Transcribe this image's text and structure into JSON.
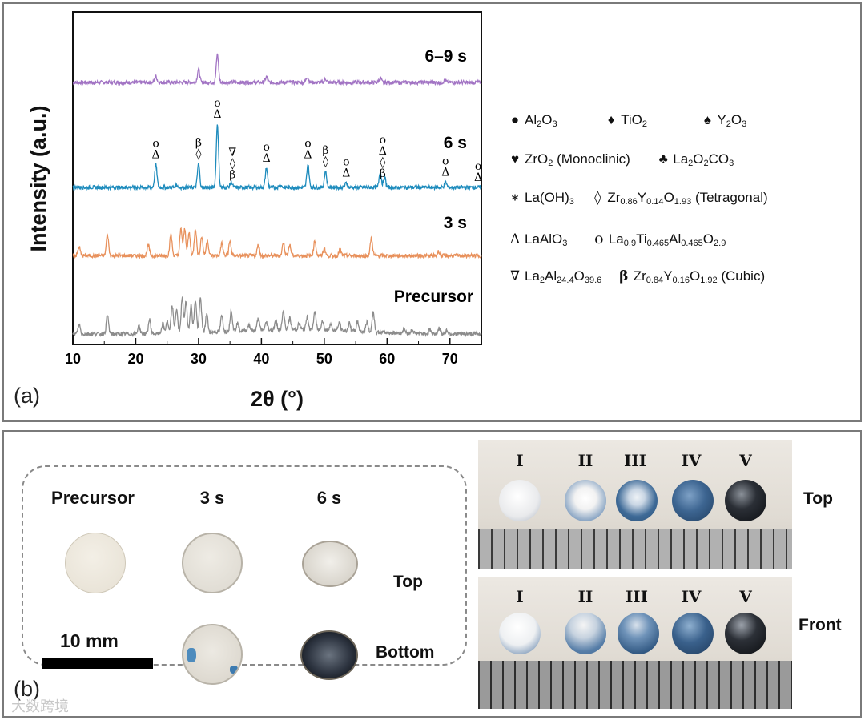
{
  "panel_a": {
    "label": "(a)"
  },
  "panel_b": {
    "label": "(b)",
    "columns": [
      "Precursor",
      "3 s",
      "6 s"
    ],
    "rows": [
      "Top",
      "Bottom"
    ],
    "scale_bar": "10 mm",
    "sphere_labels": [
      "I",
      "II",
      "III",
      "IV",
      "V"
    ],
    "views": [
      "Top",
      "Front"
    ]
  },
  "legend": {
    "al2o3": {
      "sym": "●",
      "pre": "Al",
      "s1": "2",
      "mid": "O",
      "s2": "3"
    },
    "tio2": {
      "sym": "♦",
      "pre": "TiO",
      "s1": "2"
    },
    "y2o3": {
      "sym": "♠",
      "pre": "Y",
      "s1": "2",
      "mid": "O",
      "s2": "3"
    },
    "zro2": {
      "sym": "♥",
      "pre": "ZrO",
      "s1": "2",
      "post": " (Monoclinic)"
    },
    "la2o2co3": {
      "sym": "♣",
      "pre": "La",
      "s1": "2",
      "mid": "O",
      "s2": "2",
      "post": "CO",
      "s3": "3"
    },
    "laoh3": {
      "sym": "∗",
      "text": "La(OH)",
      "s1": "3"
    },
    "tetragonal": {
      "sym": "◊",
      "a": "Zr",
      "s1": "0.86",
      "b": "Y",
      "s2": "0.14",
      "c": "O",
      "s3": "1.93",
      "post": " (Tetragonal)"
    },
    "laalo3": {
      "sym": "Δ",
      "text": "LaAlO",
      "s1": "3"
    },
    "latial": {
      "sym": "o",
      "a": "La",
      "s1": "0.9",
      "b": "Ti",
      "s2": "0.465",
      "c": "Al",
      "s3": "0.465",
      "d": "O",
      "s4": "2.9"
    },
    "la2al": {
      "sym": "∇",
      "a": "La",
      "s1": "2",
      "b": "Al",
      "s2": "24.4",
      "c": "O",
      "s3": "39.6"
    },
    "cubic": {
      "sym": "β",
      "a": "Zr",
      "s1": "0.84",
      "b": "Y",
      "s2": "0.16",
      "c": "O",
      "s3": "1.92",
      "post": " (Cubic)"
    }
  },
  "watermark": "大数跨境",
  "colors": {
    "s69": "#a274c4",
    "s6": "#1f8cbd",
    "s3": "#e8915c",
    "precursor": "#8c8c8c"
  },
  "chart_data": {
    "type": "line",
    "xlabel": "2θ (°)",
    "ylabel": "Intensity (a.u.)",
    "xlim": [
      10,
      75
    ],
    "xticks": [
      10,
      20,
      30,
      40,
      50,
      60,
      70
    ],
    "series": [
      {
        "name": "6–9 s",
        "color": "#a274c4",
        "peaks": [
          [
            23.2,
            0.35
          ],
          [
            30.0,
            0.75
          ],
          [
            33.0,
            1.6
          ],
          [
            40.8,
            0.3
          ],
          [
            47.3,
            0.33
          ],
          [
            50.2,
            0.2
          ],
          [
            58.9,
            0.25
          ],
          [
            69.2,
            0.14
          ]
        ]
      },
      {
        "name": "6 s",
        "color": "#1f8cbd",
        "peaks": [
          [
            23.2,
            1.3
          ],
          [
            26.5,
            0.15
          ],
          [
            30.0,
            1.35
          ],
          [
            33.0,
            3.6
          ],
          [
            35.2,
            0.3
          ],
          [
            40.8,
            1.1
          ],
          [
            43.0,
            0.15
          ],
          [
            47.4,
            1.3
          ],
          [
            50.2,
            0.9
          ],
          [
            53.5,
            0.25
          ],
          [
            58.9,
            0.9
          ],
          [
            59.6,
            0.6
          ],
          [
            69.3,
            0.3
          ]
        ]
      },
      {
        "name": "3 s",
        "color": "#e8915c",
        "peaks": [
          [
            11.0,
            0.5
          ],
          [
            15.5,
            1.2
          ],
          [
            22.0,
            0.6
          ],
          [
            25.6,
            1.2
          ],
          [
            27.2,
            1.5
          ],
          [
            27.8,
            1.5
          ],
          [
            28.5,
            1.3
          ],
          [
            29.5,
            1.55
          ],
          [
            30.5,
            1.1
          ],
          [
            31.4,
            0.9
          ],
          [
            33.7,
            0.7
          ],
          [
            35.0,
            0.8
          ],
          [
            39.5,
            0.6
          ],
          [
            43.5,
            0.75
          ],
          [
            44.5,
            0.6
          ],
          [
            48.5,
            0.85
          ],
          [
            50.0,
            0.4
          ],
          [
            52.5,
            0.35
          ],
          [
            57.5,
            1.0
          ],
          [
            68.2,
            0.25
          ]
        ]
      },
      {
        "name": "Precursor",
        "color": "#8c8c8c",
        "peaks": [
          [
            11.0,
            0.55
          ],
          [
            15.5,
            1.05
          ],
          [
            20.5,
            0.45
          ],
          [
            22.2,
            0.8
          ],
          [
            24.3,
            0.55
          ],
          [
            25.0,
            0.7
          ],
          [
            25.8,
            1.55
          ],
          [
            26.5,
            1.35
          ],
          [
            27.4,
            1.95
          ],
          [
            28.0,
            1.75
          ],
          [
            28.8,
            1.55
          ],
          [
            29.5,
            1.85
          ],
          [
            30.3,
            1.95
          ],
          [
            31.3,
            1.05
          ],
          [
            33.7,
            0.9
          ],
          [
            35.2,
            1.2
          ],
          [
            36.2,
            0.45
          ],
          [
            38.0,
            0.35
          ],
          [
            39.5,
            0.65
          ],
          [
            40.8,
            0.45
          ],
          [
            42.3,
            0.5
          ],
          [
            43.5,
            1.05
          ],
          [
            44.5,
            0.65
          ],
          [
            46.0,
            0.35
          ],
          [
            47.3,
            0.75
          ],
          [
            48.5,
            1.05
          ],
          [
            49.7,
            0.55
          ],
          [
            51.0,
            0.35
          ],
          [
            52.4,
            0.45
          ],
          [
            54.0,
            0.45
          ],
          [
            55.3,
            0.55
          ],
          [
            56.8,
            0.55
          ],
          [
            57.8,
            1.15
          ],
          [
            62.7,
            0.25
          ],
          [
            64.0,
            0.2
          ],
          [
            66.8,
            0.25
          ],
          [
            68.3,
            0.3
          ],
          [
            69.5,
            0.2
          ]
        ]
      }
    ],
    "curve_labels": [
      "6–9 s",
      "6 s",
      "3 s",
      "Precursor"
    ],
    "annotations": [
      {
        "x": 23.2,
        "curve": "6 s",
        "text": "o Δ"
      },
      {
        "x": 30.0,
        "curve": "6 s",
        "text": "β ◊"
      },
      {
        "x": 33.0,
        "curve": "6 s",
        "text": "o Δ"
      },
      {
        "x": 35.4,
        "curve": "6 s",
        "text": "∇ ◊ β"
      },
      {
        "x": 40.8,
        "curve": "6 s",
        "text": "o Δ"
      },
      {
        "x": 47.4,
        "curve": "6 s",
        "text": "o Δ"
      },
      {
        "x": 50.2,
        "curve": "6 s",
        "text": "β ◊"
      },
      {
        "x": 53.5,
        "curve": "6 s",
        "text": "o Δ"
      },
      {
        "x": 59.3,
        "curve": "6 s",
        "text": "o Δ ◊ β"
      },
      {
        "x": 69.3,
        "curve": "6 s",
        "text": "o Δ"
      },
      {
        "x": 74.5,
        "curve": "6 s",
        "text": "o Δ"
      }
    ]
  }
}
